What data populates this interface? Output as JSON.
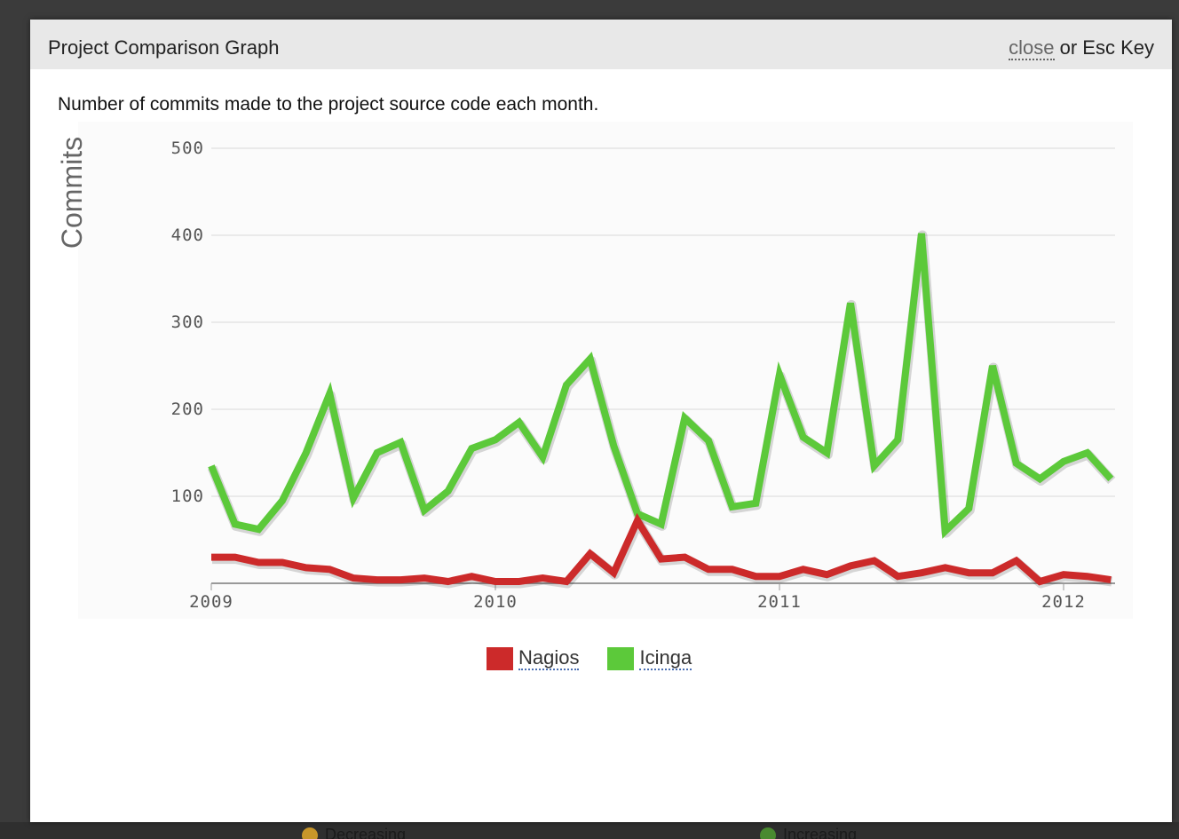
{
  "backdrop": {
    "items": [
      {
        "label": "Decreasing",
        "color": "#c8962a"
      },
      {
        "label": "Increasing",
        "color": "#4a8a30"
      }
    ]
  },
  "modal": {
    "title": "Project Comparison Graph",
    "close_label": "close",
    "close_suffix": " or Esc Key",
    "subtitle": "Number of commits made to the project source code each month."
  },
  "chart_data": {
    "type": "line",
    "ylabel": "Commits",
    "xlabel": "",
    "ylim": [
      0,
      500
    ],
    "y_ticks": [
      100,
      200,
      300,
      400,
      500
    ],
    "x_ticks": [
      "2009",
      "2010",
      "2011",
      "2012"
    ],
    "x_start": "2009-01",
    "grid": true,
    "legend_position": "bottom",
    "months": [
      "2009-01",
      "2009-02",
      "2009-03",
      "2009-04",
      "2009-05",
      "2009-06",
      "2009-07",
      "2009-08",
      "2009-09",
      "2009-10",
      "2009-11",
      "2009-12",
      "2010-01",
      "2010-02",
      "2010-03",
      "2010-04",
      "2010-05",
      "2010-06",
      "2010-07",
      "2010-08",
      "2010-09",
      "2010-10",
      "2010-11",
      "2010-12",
      "2011-01",
      "2011-02",
      "2011-03",
      "2011-04",
      "2011-05",
      "2011-06",
      "2011-07",
      "2011-08",
      "2011-09",
      "2011-10",
      "2011-11",
      "2011-12",
      "2012-01",
      "2012-02",
      "2012-03"
    ],
    "series": [
      {
        "name": "Nagios",
        "color": "#cc2a2a",
        "values": [
          30,
          30,
          24,
          24,
          18,
          16,
          6,
          4,
          4,
          6,
          2,
          8,
          2,
          2,
          6,
          2,
          34,
          12,
          72,
          28,
          30,
          16,
          16,
          8,
          8,
          16,
          10,
          20,
          26,
          8,
          12,
          18,
          12,
          12,
          26,
          2,
          10,
          8,
          4
        ]
      },
      {
        "name": "Icinga",
        "color": "#5cc93a",
        "values": [
          135,
          68,
          62,
          95,
          150,
          218,
          98,
          150,
          162,
          84,
          106,
          155,
          165,
          185,
          145,
          228,
          258,
          158,
          80,
          68,
          190,
          164,
          88,
          92,
          240,
          168,
          150,
          322,
          135,
          165,
          402,
          60,
          86,
          250,
          138,
          120,
          140,
          150,
          120
        ]
      }
    ]
  }
}
